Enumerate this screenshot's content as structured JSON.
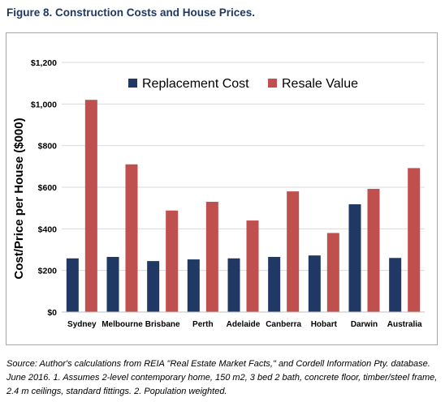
{
  "figure_title": "Figure 8. Construction Costs and House Prices.",
  "source_note": "Source: Author's calculations from REIA \"Real Estate Market Facts,\" and Cordell Information Pty. database. June 2016. 1. Assumes 2-level contemporary home, 150 m2, 3 bed 2 bath, concrete floor, timber/steel frame, 2.4 m ceilings, standard fittings. 2. Population weighted.",
  "chart_data": {
    "type": "bar",
    "title": "",
    "xlabel": "",
    "ylabel": "Cost/Price per House ($000)",
    "ylim": [
      0,
      1200
    ],
    "yticks": [
      0,
      200,
      400,
      600,
      800,
      1000,
      1200
    ],
    "ytick_labels": [
      "$0",
      "$200",
      "$400",
      "$600",
      "$800",
      "$1,000",
      "$1,200"
    ],
    "grid": "horizontal",
    "legend_position": "top-center",
    "categories": [
      "Sydney",
      "Melbourne",
      "Brisbane",
      "Perth",
      "Adelaide",
      "Canberra",
      "Hobart",
      "Darwin",
      "Australia"
    ],
    "series": [
      {
        "name": "Replacement Cost",
        "color": "#1f3864",
        "values": [
          258,
          265,
          245,
          253,
          258,
          265,
          272,
          518,
          260
        ]
      },
      {
        "name": "Resale Value",
        "color": "#c0504d",
        "values": [
          1020,
          710,
          488,
          530,
          440,
          580,
          380,
          592,
          692
        ]
      }
    ]
  }
}
